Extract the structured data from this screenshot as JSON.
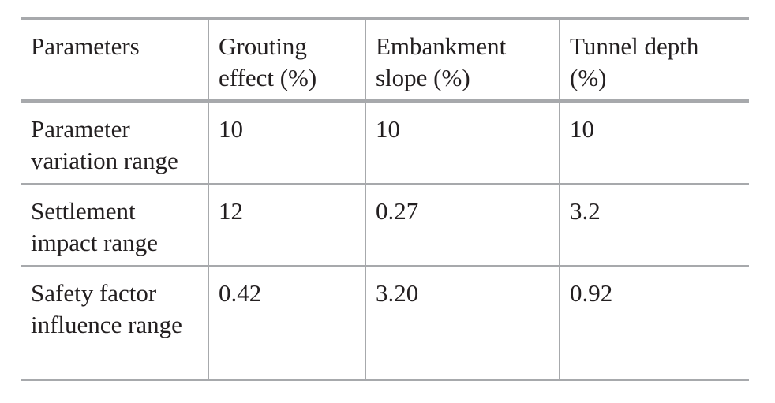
{
  "table": {
    "headers": [
      "Parameters",
      "Grouting effect (%)",
      "Embankment slope (%)",
      "Tunnel depth (%)"
    ],
    "rows": [
      {
        "label": "Parameter variation range",
        "values": [
          "10",
          "10",
          "10"
        ]
      },
      {
        "label": "Settlement impact range",
        "values": [
          "12",
          "0.27",
          "3.2"
        ]
      },
      {
        "label": "Safety factor influence range",
        "values": [
          "0.42",
          "3.20",
          "0.92"
        ]
      }
    ]
  }
}
